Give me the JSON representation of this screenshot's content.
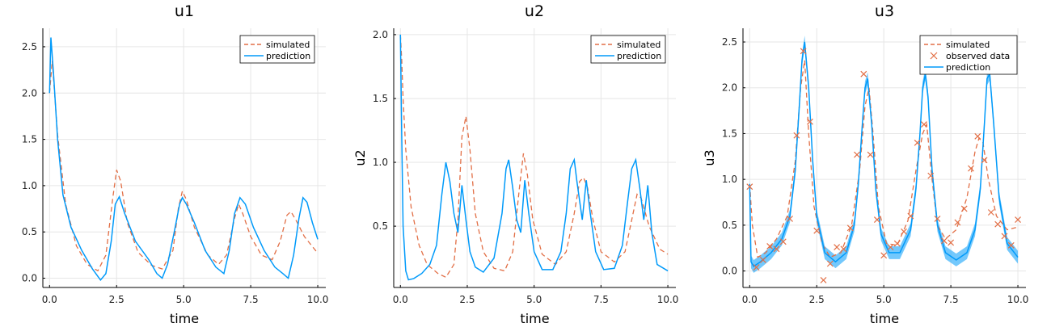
{
  "chart_data": [
    {
      "type": "line",
      "title": "u1",
      "xlabel": "time",
      "ylabel": "",
      "xlim": [
        -0.25,
        10.3
      ],
      "ylim": [
        -0.1,
        2.7
      ],
      "xticks": [
        "0.0",
        "2.5",
        "5.0",
        "7.5",
        "10.0"
      ],
      "xtick_values": [
        0,
        2.5,
        5,
        7.5,
        10
      ],
      "yticks": [
        "0.0",
        "0.5",
        "1.0",
        "1.5",
        "2.0",
        "2.5"
      ],
      "ytick_values": [
        0,
        0.5,
        1,
        1.5,
        2,
        2.5
      ],
      "grid": true,
      "legend_position": "top-right",
      "series": [
        {
          "name": "simulated",
          "style": "dashed",
          "color": "#e26f46",
          "x": [
            0,
            0.1,
            0.3,
            0.6,
            1.0,
            1.4,
            1.8,
            2.1,
            2.35,
            2.5,
            2.65,
            2.9,
            3.3,
            3.8,
            4.2,
            4.6,
            4.8,
            4.95,
            5.1,
            5.4,
            5.9,
            6.3,
            6.6,
            6.9,
            7.05,
            7.2,
            7.5,
            7.9,
            8.3,
            8.6,
            8.85,
            9.0,
            9.2,
            9.5,
            10.0
          ],
          "y": [
            2.0,
            2.35,
            1.55,
            0.8,
            0.35,
            0.15,
            0.08,
            0.25,
            0.85,
            1.17,
            1.05,
            0.6,
            0.28,
            0.14,
            0.1,
            0.3,
            0.75,
            0.94,
            0.85,
            0.55,
            0.25,
            0.15,
            0.25,
            0.65,
            0.8,
            0.7,
            0.45,
            0.25,
            0.2,
            0.4,
            0.68,
            0.72,
            0.62,
            0.45,
            0.27
          ]
        },
        {
          "name": "prediction",
          "style": "solid",
          "color": "#009afa",
          "x": [
            0,
            0.05,
            0.15,
            0.3,
            0.5,
            0.8,
            1.2,
            1.6,
            1.9,
            2.1,
            2.3,
            2.45,
            2.6,
            2.8,
            3.2,
            3.7,
            4.0,
            4.2,
            4.4,
            4.65,
            4.85,
            4.95,
            5.1,
            5.4,
            5.8,
            6.2,
            6.5,
            6.7,
            6.9,
            7.1,
            7.3,
            7.6,
            8.0,
            8.4,
            8.7,
            8.9,
            9.1,
            9.3,
            9.45,
            9.6,
            9.8,
            10.0
          ],
          "y": [
            2.0,
            2.6,
            2.2,
            1.5,
            0.9,
            0.55,
            0.3,
            0.1,
            -0.02,
            0.05,
            0.4,
            0.8,
            0.88,
            0.7,
            0.4,
            0.2,
            0.05,
            0.0,
            0.15,
            0.5,
            0.8,
            0.87,
            0.8,
            0.6,
            0.3,
            0.12,
            0.05,
            0.3,
            0.7,
            0.87,
            0.8,
            0.55,
            0.3,
            0.12,
            0.05,
            0.0,
            0.25,
            0.65,
            0.87,
            0.82,
            0.6,
            0.42
          ]
        }
      ]
    },
    {
      "type": "line",
      "title": "u2",
      "xlabel": "time",
      "ylabel": "u2",
      "xlim": [
        -0.25,
        10.3
      ],
      "ylim": [
        0.02,
        2.05
      ],
      "xticks": [
        "0.0",
        "2.5",
        "5.0",
        "7.5",
        "10.0"
      ],
      "xtick_values": [
        0,
        2.5,
        5,
        7.5,
        10
      ],
      "yticks": [
        "0.5",
        "1.0",
        "1.5",
        "2.0"
      ],
      "ytick_values": [
        0.5,
        1.0,
        1.5,
        2.0
      ],
      "grid": true,
      "legend_position": "top-right",
      "series": [
        {
          "name": "simulated",
          "style": "dashed",
          "color": "#e26f46",
          "x": [
            0,
            0.05,
            0.1,
            0.2,
            0.4,
            0.7,
            1.0,
            1.4,
            1.7,
            2.0,
            2.15,
            2.3,
            2.45,
            2.6,
            2.8,
            3.1,
            3.5,
            3.9,
            4.2,
            4.45,
            4.6,
            4.75,
            4.95,
            5.3,
            5.8,
            6.2,
            6.5,
            6.7,
            6.85,
            7.0,
            7.2,
            7.5,
            8.0,
            8.4,
            8.7,
            8.85,
            9.0,
            9.3,
            9.7,
            10.0
          ],
          "y": [
            2.0,
            1.8,
            1.5,
            1.1,
            0.65,
            0.35,
            0.2,
            0.13,
            0.1,
            0.2,
            0.55,
            1.2,
            1.36,
            1.1,
            0.6,
            0.3,
            0.17,
            0.15,
            0.3,
            0.8,
            1.07,
            0.9,
            0.55,
            0.28,
            0.2,
            0.3,
            0.6,
            0.85,
            0.88,
            0.8,
            0.55,
            0.3,
            0.22,
            0.3,
            0.6,
            0.75,
            0.72,
            0.5,
            0.32,
            0.28
          ]
        },
        {
          "name": "prediction",
          "style": "solid",
          "color": "#009afa",
          "x": [
            0,
            0.05,
            0.1,
            0.2,
            0.3,
            0.5,
            0.8,
            1.1,
            1.35,
            1.55,
            1.7,
            1.85,
            2.0,
            2.15,
            2.3,
            2.45,
            2.6,
            2.8,
            3.1,
            3.5,
            3.8,
            3.95,
            4.05,
            4.2,
            4.35,
            4.5,
            4.65,
            4.8,
            5.0,
            5.3,
            5.7,
            6.0,
            6.2,
            6.35,
            6.5,
            6.6,
            6.8,
            6.95,
            7.1,
            7.3,
            7.6,
            8.0,
            8.3,
            8.5,
            8.65,
            8.8,
            8.95,
            9.1,
            9.25,
            9.4,
            9.6,
            10.0
          ],
          "y": [
            2.0,
            1.2,
            0.5,
            0.15,
            0.08,
            0.09,
            0.13,
            0.2,
            0.35,
            0.75,
            1.0,
            0.85,
            0.6,
            0.45,
            0.82,
            0.55,
            0.3,
            0.18,
            0.14,
            0.25,
            0.6,
            0.95,
            1.02,
            0.8,
            0.55,
            0.45,
            0.86,
            0.6,
            0.3,
            0.16,
            0.16,
            0.3,
            0.6,
            0.95,
            1.02,
            0.85,
            0.55,
            0.86,
            0.6,
            0.3,
            0.16,
            0.17,
            0.35,
            0.7,
            0.95,
            1.02,
            0.8,
            0.55,
            0.82,
            0.45,
            0.2,
            0.15
          ]
        }
      ]
    },
    {
      "type": "line",
      "title": "u3",
      "xlabel": "time",
      "ylabel": "u3",
      "xlim": [
        -0.25,
        10.3
      ],
      "ylim": [
        -0.18,
        2.65
      ],
      "xticks": [
        "0.0",
        "2.5",
        "5.0",
        "7.5",
        "10.0"
      ],
      "xtick_values": [
        0,
        2.5,
        5,
        7.5,
        10
      ],
      "yticks": [
        "0.0",
        "0.5",
        "1.0",
        "1.5",
        "2.0",
        "2.5"
      ],
      "ytick_values": [
        0,
        0.5,
        1,
        1.5,
        2,
        2.5
      ],
      "grid": true,
      "legend_position": "top-right",
      "series": [
        {
          "name": "simulated",
          "style": "dashed",
          "color": "#e26f46",
          "x": [
            0,
            0.1,
            0.3,
            0.6,
            1.0,
            1.4,
            1.7,
            1.9,
            2.05,
            2.2,
            2.4,
            2.7,
            3.0,
            3.4,
            3.8,
            4.1,
            4.3,
            4.45,
            4.6,
            4.8,
            5.1,
            5.5,
            5.9,
            6.2,
            6.45,
            6.6,
            6.8,
            7.0,
            7.3,
            7.7,
            8.1,
            8.4,
            8.55,
            8.7,
            8.9,
            9.2,
            9.6,
            10.0
          ],
          "y": [
            0.95,
            0.5,
            0.15,
            0.2,
            0.35,
            0.6,
            1.2,
            2.0,
            2.3,
            1.5,
            0.7,
            0.3,
            0.15,
            0.2,
            0.5,
            1.1,
            1.8,
            2.0,
            1.5,
            0.7,
            0.3,
            0.28,
            0.55,
            1.1,
            1.5,
            1.6,
            1.0,
            0.5,
            0.35,
            0.45,
            0.8,
            1.3,
            1.45,
            1.4,
            1.0,
            0.6,
            0.45,
            0.48
          ]
        },
        {
          "name": "observed data",
          "style": "markers",
          "color": "#e26f46",
          "x": [
            0.0,
            0.25,
            0.5,
            0.75,
            1.0,
            1.25,
            1.5,
            1.75,
            2.0,
            2.25,
            2.5,
            2.75,
            3.0,
            3.25,
            3.5,
            3.75,
            4.0,
            4.25,
            4.5,
            4.75,
            5.0,
            5.25,
            5.5,
            5.75,
            6.0,
            6.25,
            6.5,
            6.75,
            7.0,
            7.25,
            7.5,
            7.75,
            8.0,
            8.25,
            8.5,
            8.75,
            9.0,
            9.25,
            9.5,
            9.75,
            10.0
          ],
          "y": [
            0.92,
            0.04,
            0.12,
            0.27,
            0.24,
            0.32,
            0.57,
            1.48,
            2.4,
            1.63,
            0.44,
            -0.1,
            0.08,
            0.26,
            0.24,
            0.47,
            1.27,
            2.15,
            1.27,
            0.56,
            0.17,
            0.26,
            0.3,
            0.43,
            0.6,
            1.4,
            1.6,
            1.04,
            0.57,
            0.33,
            0.31,
            0.53,
            0.68,
            1.12,
            1.47,
            1.21,
            0.64,
            0.51,
            0.38,
            0.28,
            0.56
          ]
        },
        {
          "name": "prediction",
          "style": "solid",
          "color": "#009afa",
          "band": 0.07,
          "x": [
            0,
            0.05,
            0.15,
            0.4,
            0.8,
            1.2,
            1.5,
            1.7,
            1.85,
            1.95,
            2.05,
            2.2,
            2.35,
            2.5,
            2.8,
            3.2,
            3.6,
            3.9,
            4.05,
            4.2,
            4.3,
            4.4,
            4.55,
            4.7,
            4.9,
            5.2,
            5.6,
            6.0,
            6.2,
            6.35,
            6.45,
            6.55,
            6.65,
            6.8,
            7.0,
            7.3,
            7.7,
            8.1,
            8.4,
            8.6,
            8.75,
            8.85,
            8.95,
            9.1,
            9.3,
            9.6,
            10.0
          ],
          "y": [
            0.95,
            0.1,
            0.05,
            0.1,
            0.2,
            0.35,
            0.6,
            1.1,
            1.8,
            2.3,
            2.5,
            2.0,
            1.2,
            0.6,
            0.2,
            0.1,
            0.2,
            0.5,
            0.95,
            1.6,
            2.0,
            2.1,
            1.6,
            0.9,
            0.4,
            0.2,
            0.2,
            0.45,
            0.9,
            1.5,
            2.0,
            2.15,
            1.9,
            1.1,
            0.5,
            0.2,
            0.12,
            0.2,
            0.45,
            0.9,
            1.6,
            2.1,
            2.15,
            1.6,
            0.8,
            0.3,
            0.15
          ]
        }
      ]
    }
  ]
}
